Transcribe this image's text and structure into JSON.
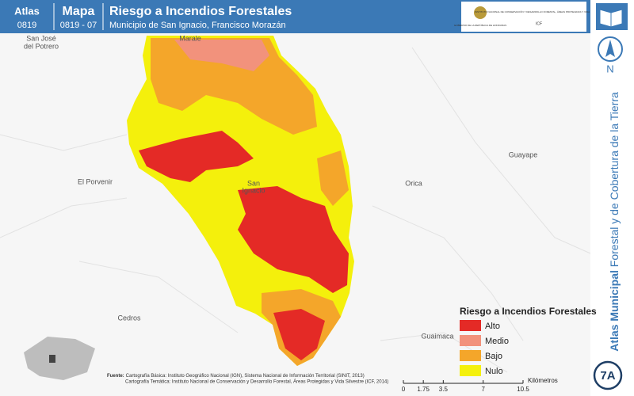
{
  "header": {
    "atlas_label": "Atlas",
    "atlas_code": "0819",
    "map_label": "Mapa",
    "map_code": "0819 - 07",
    "title": "Riesgo a Incendios Forestales",
    "subtitle": "Municipio de San Ignacio, Francisco Morazán",
    "logo_left": "GOBIERNO DE LA REPÚBLICA DE HONDURAS",
    "logo_right": "INSTITUTO NACIONAL DE CONSERVACIÓN Y DESARROLLO FORESTAL, ÁREAS PROTEGIDAS Y VIDA SILVESTRE",
    "logo_right_short": "ICF"
  },
  "sidebar": {
    "north": "N",
    "vertical_bold": "Atlas Municipal",
    "vertical_rest": " Forestal y de Cobertura de la Tierra",
    "badge": "7A"
  },
  "places": [
    "San José",
    "del Potrero",
    "Marale",
    "El Porvenir",
    "San",
    "Ignacio",
    "Orica",
    "Guayape",
    "Cedros",
    "Guaimaca"
  ],
  "legend": {
    "title": "Riesgo a Incendios Forestales",
    "items": [
      {
        "label": "Alto",
        "color": "#e42a26"
      },
      {
        "label": "Medio",
        "color": "#f2927c"
      },
      {
        "label": "Bajo",
        "color": "#f4a62a"
      },
      {
        "label": "Nulo",
        "color": "#f4f00c"
      }
    ]
  },
  "source": {
    "label": "Fuente:",
    "line1": "Cartografía Básica: Instituto Geográfico Nacional (IGN), Sistema Nacional de Información Territorial (SINIT, 2013)",
    "line2": "Cartografía Temática: Instituto Nacional de Conservación y Desarrollo Forestal, Áreas Protegidas y Vida Silvestre (ICF, 2014)"
  },
  "scale": {
    "unit": "Kilómetros",
    "ticks": [
      0,
      1.75,
      3.5,
      7,
      10.5
    ]
  }
}
